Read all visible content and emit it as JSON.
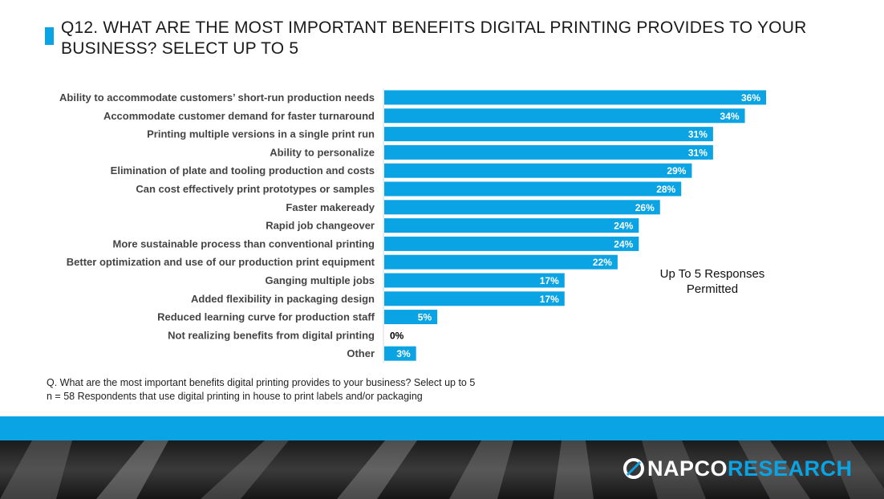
{
  "title": "Q12. WHAT ARE THE MOST IMPORTANT BENEFITS DIGITAL PRINTING PROVIDES TO YOUR BUSINESS? SELECT UP TO 5",
  "annotation": [
    "Up To 5 Responses",
    "Permitted"
  ],
  "footnote": [
    "Q. What are the most important benefits digital printing provides to your business? Select up to 5",
    "n = 58 Respondents that use digital printing in house to print labels and/or packaging"
  ],
  "logo": {
    "napco": "NAPCO",
    "research": "RESEARCH"
  },
  "colors": {
    "bar": "#0aa3e3",
    "accent": "#0aa3e3",
    "label_on_bar": "#ffffff",
    "label_outside": "#000000",
    "axis": "#d9d9d9"
  },
  "chart_data": {
    "type": "bar",
    "orientation": "horizontal",
    "categories": [
      "Ability to accommodate customers’ short-run production needs",
      "Accommodate customer demand for faster turnaround",
      "Printing multiple versions in a single print run",
      "Ability to personalize",
      "Elimination of plate and tooling production and costs",
      "Can cost effectively print prototypes or samples",
      "Faster makeready",
      "Rapid job changeover",
      "More sustainable process than conventional printing",
      "Better optimization and use of our production print equipment",
      "Ganging multiple jobs",
      "Added flexibility in packaging design",
      "Reduced learning curve for production staff",
      "Not realizing benefits from digital printing",
      "Other"
    ],
    "values": [
      36,
      34,
      31,
      31,
      29,
      28,
      26,
      24,
      24,
      22,
      17,
      17,
      5,
      0,
      3
    ],
    "value_labels": [
      "36%",
      "34%",
      "31%",
      "31%",
      "29%",
      "28%",
      "26%",
      "24%",
      "24%",
      "22%",
      "17%",
      "17%",
      "5%",
      "0%",
      "3%"
    ],
    "unit": "%",
    "xlim": [
      0,
      40
    ],
    "grid": false,
    "legend": "none"
  }
}
